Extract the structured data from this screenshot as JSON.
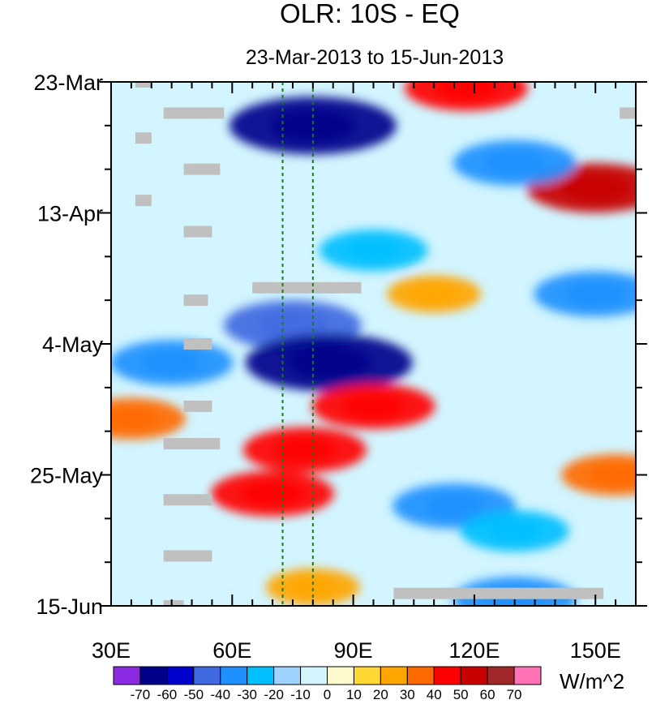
{
  "chart_data": {
    "type": "heatmap",
    "title": "OLR: 10S - EQ",
    "subtitle": "23-Mar-2013 to 15-Jun-2013",
    "xlim": [
      30,
      160
    ],
    "x_ticks": [
      {
        "value": 30,
        "label": "30E"
      },
      {
        "value": 60,
        "label": "60E"
      },
      {
        "value": 90,
        "label": "90E"
      },
      {
        "value": 120,
        "label": "120E"
      },
      {
        "value": 150,
        "label": "150E"
      }
    ],
    "ylim": [
      "2013-03-23",
      "2013-06-15"
    ],
    "y_ticks": [
      {
        "value": "2013-03-23",
        "label": "23-Mar"
      },
      {
        "value": "2013-04-13",
        "label": "13-Apr"
      },
      {
        "value": "2013-05-04",
        "label": "4-May"
      },
      {
        "value": "2013-05-25",
        "label": "25-May"
      },
      {
        "value": "2013-06-15",
        "label": "15-Jun"
      }
    ],
    "reference_lines_x": [
      72.5,
      80
    ],
    "reference_line_color": "#1a7a1a",
    "missing_color": "#c0c0c0",
    "colorbar": {
      "unit": "W/m^2",
      "labels": [
        "-70",
        "-60",
        "-50",
        "-40",
        "-30",
        "-20",
        "-10",
        "0",
        "10",
        "20",
        "30",
        "40",
        "50",
        "60",
        "70"
      ],
      "colors": [
        "#8a2be2",
        "#00008b",
        "#0000cd",
        "#4169e1",
        "#1e90ff",
        "#00bfff",
        "#a0d2ff",
        "#d2f5ff",
        "#fffacd",
        "#ffd833",
        "#ffa500",
        "#ff6a00",
        "#ff0000",
        "#c80000",
        "#a02828",
        "#ff73b4"
      ]
    },
    "anomalies": [
      {
        "x": 80,
        "date": "2013-03-30",
        "value": -70
      },
      {
        "x": 118,
        "date": "2013-03-24",
        "value": 40
      },
      {
        "x": 150,
        "date": "2013-04-09",
        "value": 50
      },
      {
        "x": 130,
        "date": "2013-04-05",
        "value": -40
      },
      {
        "x": 95,
        "date": "2013-04-19",
        "value": -30
      },
      {
        "x": 110,
        "date": "2013-04-26",
        "value": 20
      },
      {
        "x": 150,
        "date": "2013-04-26",
        "value": -40
      },
      {
        "x": 75,
        "date": "2013-05-01",
        "value": -50
      },
      {
        "x": 84,
        "date": "2013-05-07",
        "value": -70
      },
      {
        "x": 45,
        "date": "2013-05-07",
        "value": -40
      },
      {
        "x": 95,
        "date": "2013-05-14",
        "value": 40
      },
      {
        "x": 35,
        "date": "2013-05-16",
        "value": 30
      },
      {
        "x": 78,
        "date": "2013-05-21",
        "value": 40
      },
      {
        "x": 70,
        "date": "2013-05-28",
        "value": 40
      },
      {
        "x": 115,
        "date": "2013-05-30",
        "value": -40
      },
      {
        "x": 130,
        "date": "2013-06-03",
        "value": -30
      },
      {
        "x": 155,
        "date": "2013-05-25",
        "value": 30
      },
      {
        "x": 80,
        "date": "2013-06-12",
        "value": 20
      },
      {
        "x": 130,
        "date": "2013-06-14",
        "value": -40
      }
    ],
    "missing_segments": [
      {
        "x_start": 36,
        "x_end": 40,
        "date": "2013-03-23"
      },
      {
        "x_start": 43,
        "x_end": 58,
        "date": "2013-03-28"
      },
      {
        "x_start": 36,
        "x_end": 40,
        "date": "2013-04-01"
      },
      {
        "x_start": 48,
        "x_end": 57,
        "date": "2013-04-06"
      },
      {
        "x_start": 36,
        "x_end": 40,
        "date": "2013-04-11"
      },
      {
        "x_start": 48,
        "x_end": 55,
        "date": "2013-04-16"
      },
      {
        "x_start": 65,
        "x_end": 92,
        "date": "2013-04-25"
      },
      {
        "x_start": 48,
        "x_end": 54,
        "date": "2013-04-27"
      },
      {
        "x_start": 48,
        "x_end": 55,
        "date": "2013-05-04"
      },
      {
        "x_start": 48,
        "x_end": 55,
        "date": "2013-05-14"
      },
      {
        "x_start": 43,
        "x_end": 57,
        "date": "2013-05-20"
      },
      {
        "x_start": 43,
        "x_end": 55,
        "date": "2013-05-29"
      },
      {
        "x_start": 43,
        "x_end": 55,
        "date": "2013-06-07"
      },
      {
        "x_start": 100,
        "x_end": 152,
        "date": "2013-06-13"
      },
      {
        "x_start": 43,
        "x_end": 48,
        "date": "2013-06-15"
      },
      {
        "x_start": 156,
        "x_end": 160,
        "date": "2013-03-28"
      }
    ]
  }
}
